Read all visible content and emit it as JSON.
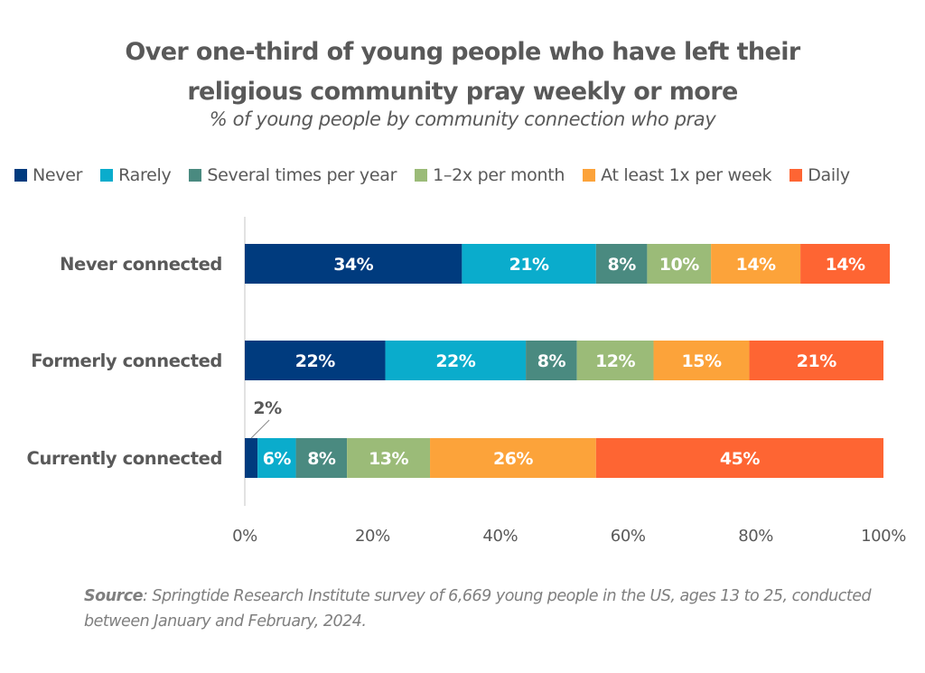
{
  "chart_data": {
    "type": "bar",
    "orientation": "horizontal",
    "stacked": true,
    "title": "Over one-third of young people who have left their religious community pray weekly or more",
    "title_lines": [
      "Over one-third of young people who have left their",
      "religious community pray weekly or more"
    ],
    "subtitle": "% of young people by community connection who pray",
    "categories": [
      "Never connected",
      "Formerly connected",
      "Currently connected"
    ],
    "series": [
      {
        "name": "Never",
        "color": "#003b7e",
        "values": [
          34,
          22,
          2
        ]
      },
      {
        "name": "Rarely",
        "color": "#0aaccc",
        "values": [
          21,
          22,
          6
        ]
      },
      {
        "name": "Several times per year",
        "color": "#4a8a80",
        "values": [
          8,
          8,
          8
        ]
      },
      {
        "name": "1–2x per month",
        "color": "#9bbb78",
        "values": [
          10,
          12,
          13
        ]
      },
      {
        "name": "At least 1x per week",
        "color": "#fca33a",
        "values": [
          14,
          15,
          26
        ]
      },
      {
        "name": "Daily",
        "color": "#fe6533",
        "values": [
          14,
          21,
          45
        ]
      }
    ],
    "data_labels": [
      [
        "34%",
        "21%",
        "8%",
        "10%",
        "14%",
        "14%"
      ],
      [
        "22%",
        "22%",
        "8%",
        "12%",
        "15%",
        "21%"
      ],
      [
        "2%",
        "6%",
        "8%",
        "13%",
        "26%",
        "45%"
      ]
    ],
    "callout_label": "2%",
    "xlabel": "",
    "ylabel": "",
    "xlim": [
      0,
      100
    ],
    "x_ticks": [
      0,
      20,
      40,
      60,
      80,
      100
    ],
    "x_tick_labels": [
      "0%",
      "20%",
      "40%",
      "60%",
      "80%",
      "100%"
    ],
    "grid": false,
    "legend_position": "top"
  },
  "source": {
    "label": "Source",
    "text": ": Springtide Research Institute survey of 6,669 young people in the US, ages 13 to 25, conducted between January and February, 2024."
  }
}
